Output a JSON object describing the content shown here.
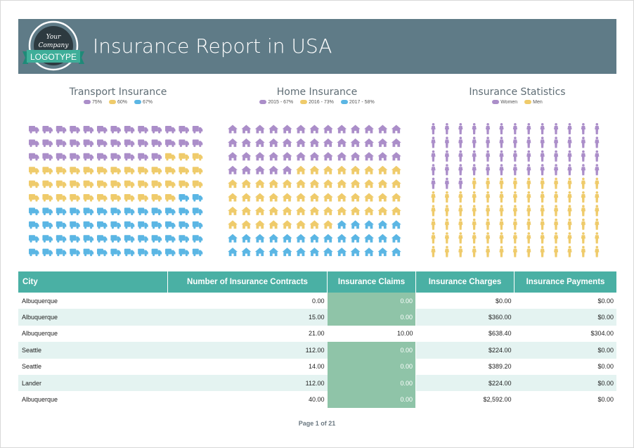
{
  "header": {
    "title": "Insurance Report in USA",
    "logo_line1": "Your",
    "logo_line2": "Company",
    "logo_banner": "LOGOTYPE"
  },
  "colors": {
    "purple": "#ab8ec9",
    "yellow": "#efcb6b",
    "blue": "#5bb6e4",
    "header_bg": "#5f7b87",
    "table_header": "#4ab0a4"
  },
  "charts": [
    {
      "title": "Transport Insurance",
      "icon": "truck-icon",
      "legend": [
        "75%",
        "60%",
        "67%"
      ],
      "grid_rows": 10,
      "grid_cols": 13,
      "counts": [
        36,
        40,
        54
      ]
    },
    {
      "title": "Home Insurance",
      "icon": "house-icon",
      "legend": [
        "2015 - 67%",
        "2016 - 73%",
        "2017 - 58%"
      ],
      "grid_rows": 10,
      "grid_cols": 13,
      "counts": [
        44,
        55,
        31
      ]
    },
    {
      "title": "Insurance Statistics",
      "icon": "person-icon",
      "legend": [
        "Women",
        "Men"
      ],
      "grid_rows": 10,
      "grid_cols": 13,
      "counts": [
        55,
        75
      ]
    }
  ],
  "table": {
    "columns": [
      "City",
      "Number of Insurance Contracts",
      "Insurance Claims",
      "Insurance Charges",
      "Insurance Payments"
    ],
    "rows": [
      {
        "city": "Albuquerque",
        "contracts": "0.00",
        "claims": "0.00",
        "charges": "$0.00",
        "payments": "$0.00",
        "highlight": true
      },
      {
        "city": "Albuquerque",
        "contracts": "15.00",
        "claims": "0.00",
        "charges": "$360.00",
        "payments": "$0.00",
        "highlight": true
      },
      {
        "city": "Albuquerque",
        "contracts": "21.00",
        "claims": "10.00",
        "charges": "$638.40",
        "payments": "$304.00",
        "highlight": false
      },
      {
        "city": "Seattle",
        "contracts": "112.00",
        "claims": "0.00",
        "charges": "$224.00",
        "payments": "$0.00",
        "highlight": true
      },
      {
        "city": "Seattle",
        "contracts": "14.00",
        "claims": "0.00",
        "charges": "$389.20",
        "payments": "$0.00",
        "highlight": true
      },
      {
        "city": "Lander",
        "contracts": "112.00",
        "claims": "0.00",
        "charges": "$224.00",
        "payments": "$0.00",
        "highlight": true
      },
      {
        "city": "Albuquerque",
        "contracts": "40.00",
        "claims": "0.00",
        "charges": "$2,592.00",
        "payments": "$0.00",
        "highlight": true
      }
    ]
  },
  "footer": {
    "page_label": "Page 1 of 21"
  }
}
